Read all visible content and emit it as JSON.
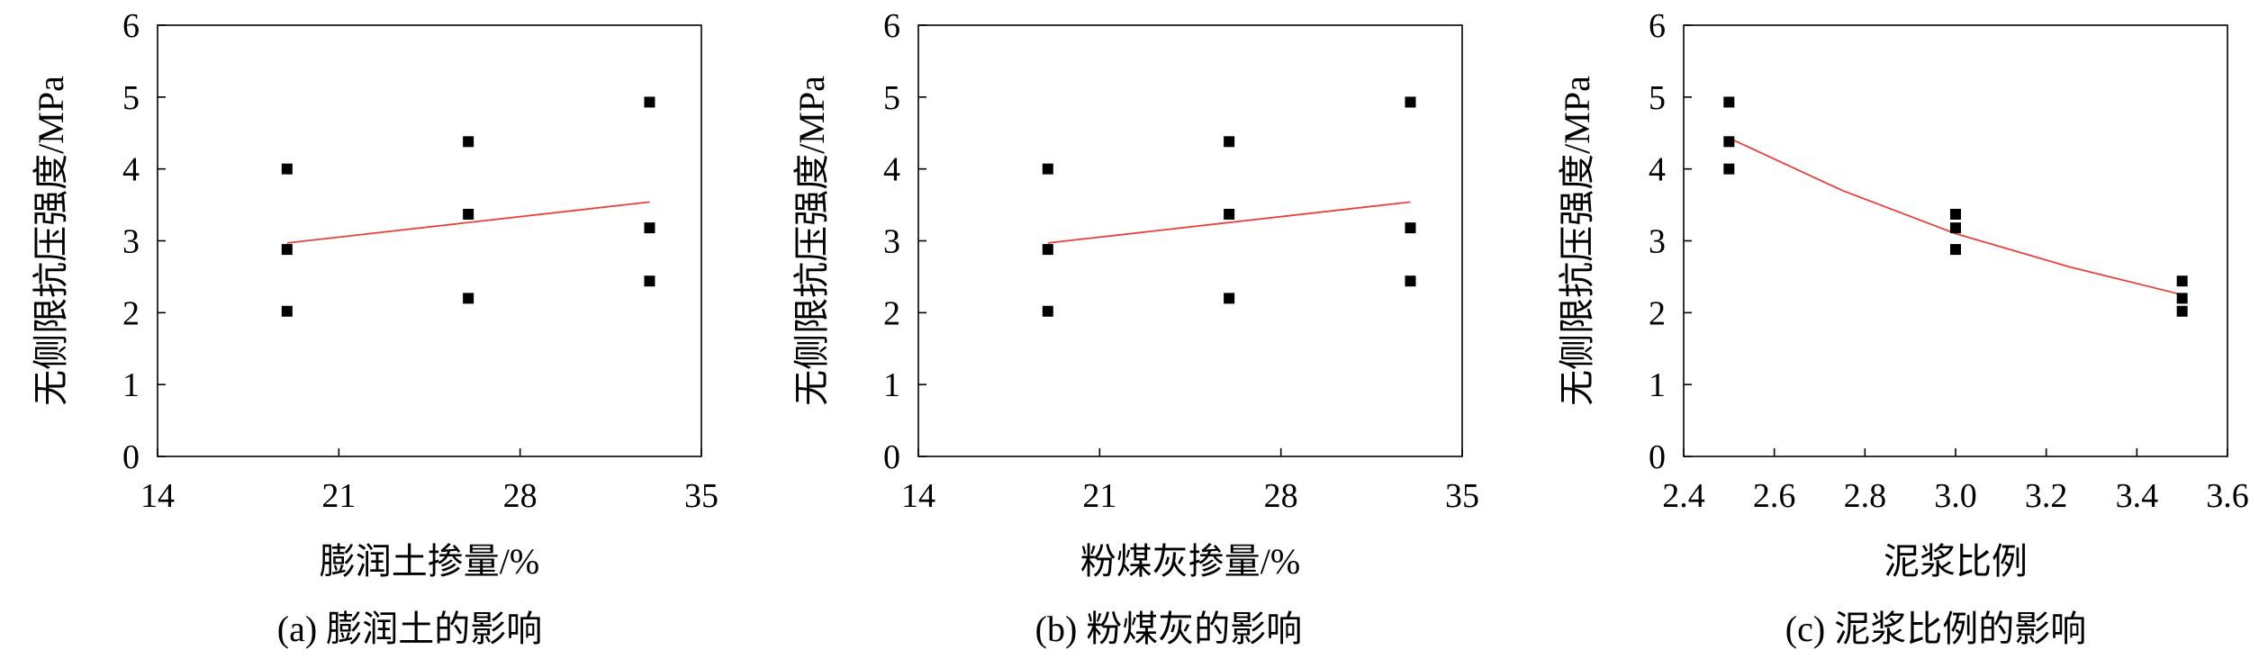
{
  "chart_data": [
    {
      "type": "scatter",
      "title": "",
      "caption": "(a) 膨润土的影响",
      "xlabel": "膨润土掺量/%",
      "ylabel": "无侧限抗压强度/MPa",
      "xlim": [
        14,
        35
      ],
      "ylim": [
        0,
        6
      ],
      "xticks": [
        14,
        21,
        28,
        35
      ],
      "xtick_labels": [
        "14",
        "21",
        "28",
        "35"
      ],
      "yticks": [
        0,
        1,
        2,
        3,
        4,
        5,
        6
      ],
      "ytick_labels": [
        "0",
        "1",
        "2",
        "3",
        "4",
        "5",
        "6"
      ],
      "grid": false,
      "series": [
        {
          "marker": "square",
          "color": "#000000",
          "points": [
            {
              "x": 19,
              "y": 4.0
            },
            {
              "x": 19,
              "y": 2.88
            },
            {
              "x": 19,
              "y": 2.02
            },
            {
              "x": 26,
              "y": 4.38
            },
            {
              "x": 26,
              "y": 3.37
            },
            {
              "x": 26,
              "y": 2.2
            },
            {
              "x": 33,
              "y": 4.93
            },
            {
              "x": 33,
              "y": 3.18
            },
            {
              "x": 33,
              "y": 2.44
            }
          ]
        }
      ],
      "trendline": {
        "color": "#e8413a",
        "kind": "linear",
        "points": [
          {
            "x": 19,
            "y": 2.97
          },
          {
            "x": 33,
            "y": 3.54
          }
        ]
      }
    },
    {
      "type": "scatter",
      "title": "",
      "caption": "(b) 粉煤灰的影响",
      "xlabel": "粉煤灰掺量/%",
      "ylabel": "无侧限抗压强度/MPa",
      "xlim": [
        14,
        35
      ],
      "ylim": [
        0,
        6
      ],
      "xticks": [
        14,
        21,
        28,
        35
      ],
      "xtick_labels": [
        "14",
        "21",
        "28",
        "35"
      ],
      "yticks": [
        0,
        1,
        2,
        3,
        4,
        5,
        6
      ],
      "ytick_labels": [
        "0",
        "1",
        "2",
        "3",
        "4",
        "5",
        "6"
      ],
      "grid": false,
      "series": [
        {
          "marker": "square",
          "color": "#000000",
          "points": [
            {
              "x": 19,
              "y": 4.0
            },
            {
              "x": 19,
              "y": 2.88
            },
            {
              "x": 19,
              "y": 2.02
            },
            {
              "x": 26,
              "y": 4.38
            },
            {
              "x": 26,
              "y": 3.37
            },
            {
              "x": 26,
              "y": 2.2
            },
            {
              "x": 33,
              "y": 4.93
            },
            {
              "x": 33,
              "y": 3.18
            },
            {
              "x": 33,
              "y": 2.44
            }
          ]
        }
      ],
      "trendline": {
        "color": "#e8413a",
        "kind": "linear",
        "points": [
          {
            "x": 19,
            "y": 2.97
          },
          {
            "x": 33,
            "y": 3.54
          }
        ]
      }
    },
    {
      "type": "scatter",
      "title": "",
      "caption": "(c) 泥浆比例的影响",
      "xlabel": "泥浆比例",
      "ylabel": "无侧限抗压强度/MPa",
      "xlim": [
        2.4,
        3.6
      ],
      "ylim": [
        0,
        6
      ],
      "xticks": [
        2.4,
        2.6,
        2.8,
        3.0,
        3.2,
        3.4,
        3.6
      ],
      "xtick_labels": [
        "2.4",
        "2.6",
        "2.8",
        "3.0",
        "3.2",
        "3.4",
        "3.6"
      ],
      "yticks": [
        0,
        1,
        2,
        3,
        4,
        5,
        6
      ],
      "ytick_labels": [
        "0",
        "1",
        "2",
        "3",
        "4",
        "5",
        "6"
      ],
      "grid": false,
      "series": [
        {
          "marker": "square",
          "color": "#000000",
          "points": [
            {
              "x": 2.5,
              "y": 4.93
            },
            {
              "x": 2.5,
              "y": 4.38
            },
            {
              "x": 2.5,
              "y": 4.0
            },
            {
              "x": 3.0,
              "y": 3.37
            },
            {
              "x": 3.0,
              "y": 3.18
            },
            {
              "x": 3.0,
              "y": 2.88
            },
            {
              "x": 3.5,
              "y": 2.44
            },
            {
              "x": 3.5,
              "y": 2.2
            },
            {
              "x": 3.5,
              "y": 2.02
            }
          ]
        }
      ],
      "trendline": {
        "color": "#e8413a",
        "kind": "curve",
        "points": [
          {
            "x": 2.5,
            "y": 4.43
          },
          {
            "x": 2.75,
            "y": 3.7
          },
          {
            "x": 3.0,
            "y": 3.1
          },
          {
            "x": 3.25,
            "y": 2.64
          },
          {
            "x": 3.5,
            "y": 2.25
          }
        ]
      }
    }
  ]
}
